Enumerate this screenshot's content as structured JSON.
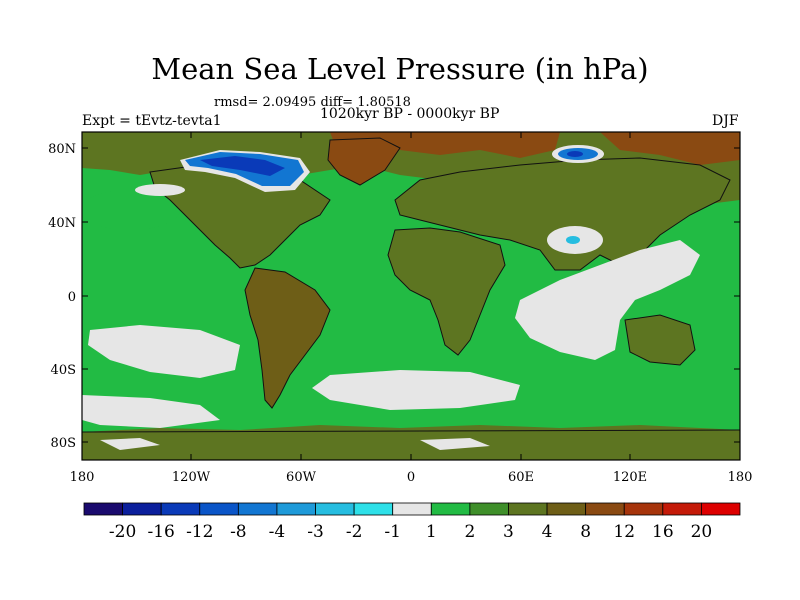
{
  "title": "Mean Sea Level Pressure (in hPa)",
  "stats": "rmsd= 2.09495 diff= 1.80518",
  "period": "1020kyr BP - 0000kyr BP",
  "experiment": "Expt = tEvtz-tevta1",
  "season": "DJF",
  "lat_labels": [
    "80N",
    "40N",
    "0",
    "40S",
    "80S"
  ],
  "lon_labels": [
    "180",
    "120W",
    "60W",
    "0",
    "60E",
    "120E",
    "180"
  ],
  "colorbar": {
    "labels": [
      "-20",
      "-16",
      "-12",
      "-8",
      "-4",
      "-3",
      "-2",
      "-1",
      "1",
      "2",
      "3",
      "4",
      "8",
      "12",
      "16",
      "20"
    ],
    "colors": [
      "#1a0a6e",
      "#0b1f9c",
      "#0a3ab8",
      "#0a55c8",
      "#1276d2",
      "#1e9ad9",
      "#26bde0",
      "#2ee0e8",
      "#e6e6e6",
      "#22bb44",
      "#3f8f2a",
      "#5d7521",
      "#6e5e17",
      "#8a4a12",
      "#a6340b",
      "#c41a08",
      "#dd0000"
    ]
  },
  "colors": {
    "ocean_green": "#22bb44",
    "land_olive": "#5d7521",
    "light_grey": "#e6e6e6",
    "brown": "#8a4a12",
    "blue": "#1276d2",
    "dark_blue": "#0a3ab8"
  }
}
